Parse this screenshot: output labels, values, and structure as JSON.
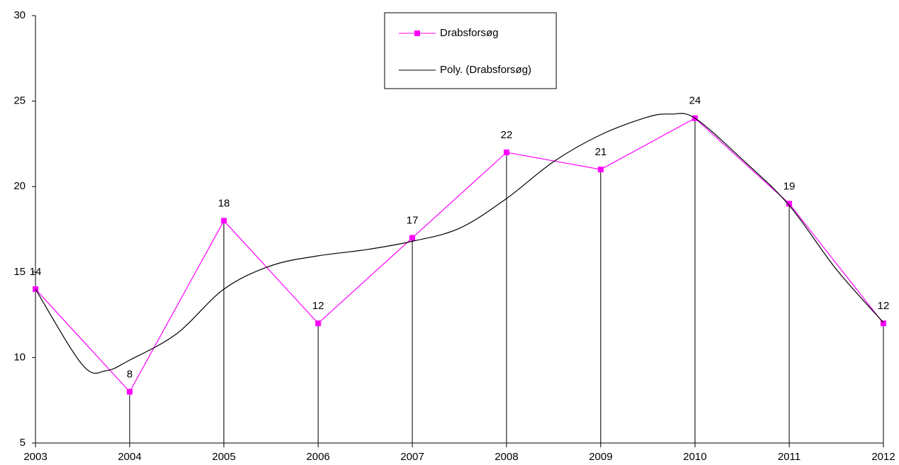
{
  "chart_data": {
    "type": "line",
    "x": [
      2003,
      2004,
      2005,
      2006,
      2007,
      2008,
      2009,
      2010,
      2011,
      2012
    ],
    "xlim": [
      2003,
      2012
    ],
    "xticks": [
      2003,
      2004,
      2005,
      2006,
      2007,
      2008,
      2009,
      2010,
      2011,
      2012
    ],
    "ylim": [
      5,
      30
    ],
    "yticks": [
      5,
      10,
      15,
      20,
      25,
      30
    ],
    "grid": false,
    "drop_lines": true,
    "legend": "top",
    "series": [
      {
        "name": "Drabsforsøg",
        "color": "#ff00ff",
        "marker": "square",
        "data_labels": true,
        "values": [
          14,
          8,
          18,
          12,
          17,
          22,
          21,
          24,
          19,
          12
        ]
      },
      {
        "name": "Poly. (Drabsforsøg)",
        "color": "#000000",
        "smooth": true,
        "x": [
          2003,
          2003.5,
          2003.75,
          2004,
          2004.5,
          2005,
          2005.5,
          2006,
          2006.5,
          2007,
          2007.5,
          2008,
          2008.5,
          2009,
          2009.5,
          2009.75,
          2010,
          2010.5,
          2011,
          2011.5,
          2012
        ],
        "values": [
          14,
          9.56,
          9.23,
          9.85,
          11.4,
          14.0,
          15.37,
          15.95,
          16.3,
          16.8,
          17.56,
          19.3,
          21.46,
          23.03,
          24.07,
          24.24,
          24.0,
          21.6,
          18.9,
          15.16,
          12.05
        ]
      }
    ]
  }
}
